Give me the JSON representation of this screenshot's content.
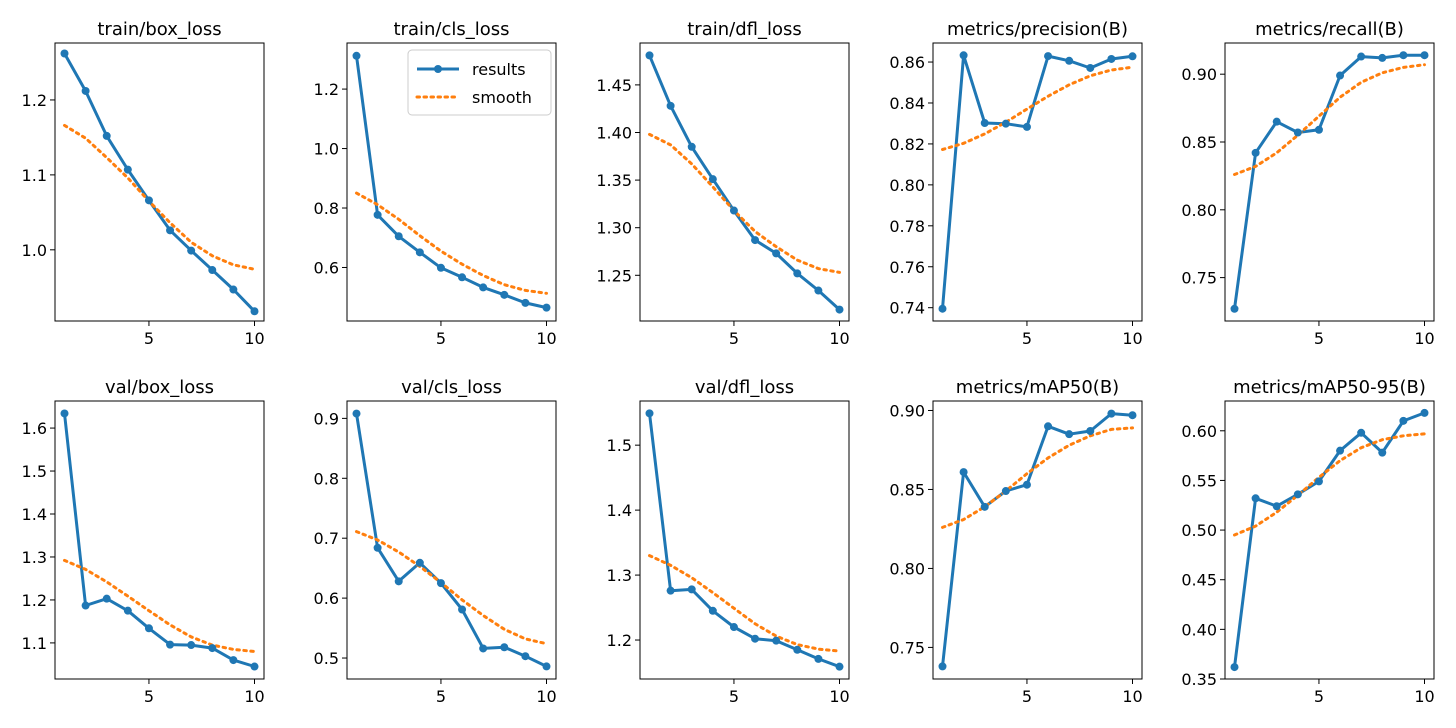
{
  "colors": {
    "results": "#1f77b4",
    "smooth": "#ff7f0e",
    "axis": "#000000",
    "background": "#ffffff"
  },
  "legend": {
    "results_label": "results",
    "smooth_label": "smooth",
    "placement": "top-right of train/cls_loss"
  },
  "chart_data": [
    {
      "type": "line",
      "title": "train/box_loss",
      "x": [
        1,
        2,
        3,
        4,
        5,
        6,
        7,
        8,
        9,
        10
      ],
      "series": [
        {
          "name": "results",
          "values": [
            1.262,
            1.212,
            1.152,
            1.107,
            1.066,
            1.026,
            0.999,
            0.973,
            0.947,
            0.918
          ]
        },
        {
          "name": "smooth",
          "values": [
            1.166,
            1.149,
            1.123,
            1.096,
            1.065,
            1.036,
            1.01,
            0.992,
            0.98,
            0.974
          ]
        }
      ],
      "xlim": [
        0.55,
        10.45
      ],
      "ylim": [
        0.905,
        1.276
      ],
      "xticks": [
        5,
        10
      ],
      "xtick_labels": [
        "5",
        "10"
      ],
      "yticks": [
        1.0,
        1.1,
        1.2
      ],
      "ytick_labels": [
        "1.0",
        "1.1",
        "1.2"
      ],
      "legend": false
    },
    {
      "type": "line",
      "title": "train/cls_loss",
      "x": [
        1,
        2,
        3,
        4,
        5,
        6,
        7,
        8,
        9,
        10
      ],
      "series": [
        {
          "name": "results",
          "values": [
            1.312,
            0.777,
            0.705,
            0.651,
            0.599,
            0.567,
            0.533,
            0.508,
            0.481,
            0.465
          ]
        },
        {
          "name": "smooth",
          "values": [
            0.85,
            0.811,
            0.762,
            0.707,
            0.655,
            0.611,
            0.573,
            0.542,
            0.523,
            0.513
          ]
        }
      ],
      "xlim": [
        0.55,
        10.45
      ],
      "ylim": [
        0.42,
        1.355
      ],
      "xticks": [
        5,
        10
      ],
      "xtick_labels": [
        "5",
        "10"
      ],
      "yticks": [
        0.6,
        0.8,
        1.0,
        1.2
      ],
      "ytick_labels": [
        "0.6",
        "0.8",
        "1.0",
        "1.2"
      ],
      "legend": true
    },
    {
      "type": "line",
      "title": "train/dfl_loss",
      "x": [
        1,
        2,
        3,
        4,
        5,
        6,
        7,
        8,
        9,
        10
      ],
      "series": [
        {
          "name": "results",
          "values": [
            1.481,
            1.428,
            1.385,
            1.351,
            1.318,
            1.287,
            1.273,
            1.252,
            1.234,
            1.214
          ]
        },
        {
          "name": "smooth",
          "values": [
            1.398,
            1.387,
            1.367,
            1.343,
            1.318,
            1.296,
            1.28,
            1.266,
            1.257,
            1.253
          ]
        }
      ],
      "xlim": [
        0.55,
        10.45
      ],
      "ylim": [
        1.202,
        1.494
      ],
      "xticks": [
        5,
        10
      ],
      "xtick_labels": [
        "5",
        "10"
      ],
      "yticks": [
        1.25,
        1.3,
        1.35,
        1.4,
        1.45
      ],
      "ytick_labels": [
        "1.25",
        "1.30",
        "1.35",
        "1.40",
        "1.45"
      ],
      "legend": false
    },
    {
      "type": "line",
      "title": "metrics/precision(B)",
      "x": [
        1,
        2,
        3,
        4,
        5,
        6,
        7,
        8,
        9,
        10
      ],
      "series": [
        {
          "name": "results",
          "values": [
            0.7395,
            0.8633,
            0.8302,
            0.8299,
            0.8283,
            0.8629,
            0.8606,
            0.8571,
            0.8615,
            0.8628
          ]
        },
        {
          "name": "smooth",
          "values": [
            0.8173,
            0.8203,
            0.8249,
            0.8306,
            0.837,
            0.8433,
            0.8489,
            0.8533,
            0.8561,
            0.8575
          ]
        }
      ],
      "xlim": [
        0.55,
        10.45
      ],
      "ylim": [
        0.7335,
        0.8693
      ],
      "xticks": [
        5,
        10
      ],
      "xtick_labels": [
        "5",
        "10"
      ],
      "yticks": [
        0.74,
        0.76,
        0.78,
        0.8,
        0.82,
        0.84,
        0.86
      ],
      "ytick_labels": [
        "0.74",
        "0.76",
        "0.78",
        "0.80",
        "0.82",
        "0.84",
        "0.86"
      ],
      "legend": false
    },
    {
      "type": "line",
      "title": "metrics/recall(B)",
      "x": [
        1,
        2,
        3,
        4,
        5,
        6,
        7,
        8,
        9,
        10
      ],
      "series": [
        {
          "name": "results",
          "values": [
            0.727,
            0.842,
            0.865,
            0.857,
            0.859,
            0.899,
            0.913,
            0.912,
            0.914,
            0.914
          ]
        },
        {
          "name": "smooth",
          "values": [
            0.826,
            0.832,
            0.842,
            0.855,
            0.869,
            0.883,
            0.894,
            0.901,
            0.905,
            0.907
          ]
        }
      ],
      "xlim": [
        0.55,
        10.45
      ],
      "ylim": [
        0.718,
        0.923
      ],
      "xticks": [
        5,
        10
      ],
      "xtick_labels": [
        "5",
        "10"
      ],
      "yticks": [
        0.75,
        0.8,
        0.85,
        0.9
      ],
      "ytick_labels": [
        "0.75",
        "0.80",
        "0.85",
        "0.90"
      ],
      "legend": false
    },
    {
      "type": "line",
      "title": "val/box_loss",
      "x": [
        1,
        2,
        3,
        4,
        5,
        6,
        7,
        8,
        9,
        10
      ],
      "series": [
        {
          "name": "results",
          "values": [
            1.634,
            1.187,
            1.203,
            1.175,
            1.134,
            1.096,
            1.095,
            1.088,
            1.06,
            1.045
          ]
        },
        {
          "name": "smooth",
          "values": [
            1.292,
            1.271,
            1.242,
            1.209,
            1.175,
            1.142,
            1.114,
            1.095,
            1.085,
            1.08
          ]
        }
      ],
      "xlim": [
        0.55,
        10.45
      ],
      "ylim": [
        1.016,
        1.663
      ],
      "xticks": [
        5,
        10
      ],
      "xtick_labels": [
        "5",
        "10"
      ],
      "yticks": [
        1.1,
        1.2,
        1.3,
        1.4,
        1.5,
        1.6
      ],
      "ytick_labels": [
        "1.1",
        "1.2",
        "1.3",
        "1.4",
        "1.5",
        "1.6"
      ],
      "legend": false
    },
    {
      "type": "line",
      "title": "val/cls_loss",
      "x": [
        1,
        2,
        3,
        4,
        5,
        6,
        7,
        8,
        9,
        10
      ],
      "series": [
        {
          "name": "results",
          "values": [
            0.908,
            0.684,
            0.628,
            0.659,
            0.625,
            0.581,
            0.516,
            0.518,
            0.503,
            0.486
          ]
        },
        {
          "name": "smooth",
          "values": [
            0.711,
            0.697,
            0.677,
            0.653,
            0.626,
            0.597,
            0.571,
            0.548,
            0.532,
            0.524
          ]
        }
      ],
      "xlim": [
        0.55,
        10.45
      ],
      "ylim": [
        0.465,
        0.929
      ],
      "xticks": [
        5,
        10
      ],
      "xtick_labels": [
        "5",
        "10"
      ],
      "yticks": [
        0.5,
        0.6,
        0.7,
        0.8,
        0.9
      ],
      "ytick_labels": [
        "0.5",
        "0.6",
        "0.7",
        "0.8",
        "0.9"
      ],
      "legend": false
    },
    {
      "type": "line",
      "title": "val/dfl_loss",
      "x": [
        1,
        2,
        3,
        4,
        5,
        6,
        7,
        8,
        9,
        10
      ],
      "series": [
        {
          "name": "results",
          "values": [
            1.549,
            1.276,
            1.278,
            1.245,
            1.22,
            1.202,
            1.199,
            1.185,
            1.171,
            1.159
          ]
        },
        {
          "name": "smooth",
          "values": [
            1.33,
            1.315,
            1.296,
            1.273,
            1.249,
            1.225,
            1.206,
            1.193,
            1.186,
            1.183
          ]
        }
      ],
      "xlim": [
        0.55,
        10.45
      ],
      "ylim": [
        1.14,
        1.568
      ],
      "xticks": [
        5,
        10
      ],
      "xtick_labels": [
        "5",
        "10"
      ],
      "yticks": [
        1.2,
        1.3,
        1.4,
        1.5
      ],
      "ytick_labels": [
        "1.2",
        "1.3",
        "1.4",
        "1.5"
      ],
      "legend": false
    },
    {
      "type": "line",
      "title": "metrics/mAP50(B)",
      "x": [
        1,
        2,
        3,
        4,
        5,
        6,
        7,
        8,
        9,
        10
      ],
      "series": [
        {
          "name": "results",
          "values": [
            0.738,
            0.861,
            0.839,
            0.849,
            0.853,
            0.89,
            0.885,
            0.887,
            0.898,
            0.897
          ]
        },
        {
          "name": "smooth",
          "values": [
            0.826,
            0.831,
            0.839,
            0.849,
            0.86,
            0.87,
            0.878,
            0.884,
            0.888,
            0.889
          ]
        }
      ],
      "xlim": [
        0.55,
        10.45
      ],
      "ylim": [
        0.73,
        0.906
      ],
      "xticks": [
        5,
        10
      ],
      "xtick_labels": [
        "5",
        "10"
      ],
      "yticks": [
        0.75,
        0.8,
        0.85,
        0.9
      ],
      "ytick_labels": [
        "0.75",
        "0.80",
        "0.85",
        "0.90"
      ],
      "legend": false
    },
    {
      "type": "line",
      "title": "metrics/mAP50-95(B)",
      "x": [
        1,
        2,
        3,
        4,
        5,
        6,
        7,
        8,
        9,
        10
      ],
      "series": [
        {
          "name": "results",
          "values": [
            0.362,
            0.532,
            0.524,
            0.536,
            0.549,
            0.58,
            0.598,
            0.578,
            0.61,
            0.618
          ]
        },
        {
          "name": "smooth",
          "values": [
            0.495,
            0.504,
            0.518,
            0.535,
            0.553,
            0.57,
            0.583,
            0.591,
            0.595,
            0.597
          ]
        }
      ],
      "xlim": [
        0.55,
        10.45
      ],
      "ylim": [
        0.35,
        0.63
      ],
      "xticks": [
        5,
        10
      ],
      "xtick_labels": [
        "5",
        "10"
      ],
      "yticks": [
        0.35,
        0.4,
        0.45,
        0.5,
        0.55,
        0.6
      ],
      "ytick_labels": [
        "0.35",
        "0.40",
        "0.45",
        "0.50",
        "0.55",
        "0.60"
      ],
      "legend": false
    }
  ]
}
